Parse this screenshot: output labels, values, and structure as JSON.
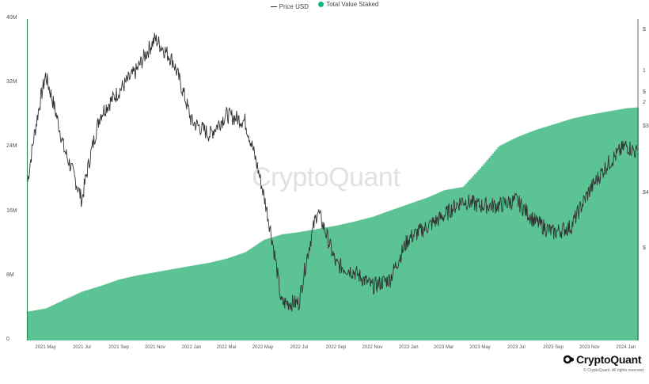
{
  "legend": {
    "price_label": "Price USD",
    "staked_label": "Total Value Staked",
    "staked_color": "#10b97a",
    "price_color": "#333333"
  },
  "watermark": "CryptoQuant",
  "brand": {
    "name": "CryptoQuant",
    "copyright": "© CryptoQuant. All rights reserved."
  },
  "chart_data": {
    "type": "area",
    "title": "",
    "xlabel": "",
    "ylabel": "",
    "x_ticks": [
      "2021 May",
      "2021 Jul",
      "2021 Sep",
      "2021 Nov",
      "2022 Jan",
      "2022 Mar",
      "2022 May",
      "2022 Jul",
      "2022 Sep",
      "2022 Nov",
      "2023 Jan",
      "2023 Mar",
      "2023 May",
      "2023 Jul",
      "2023 Sep",
      "2023 Nov",
      "2024 Jan"
    ],
    "y_left": {
      "ticks": [
        "0",
        "8M",
        "16M",
        "24M",
        "32M",
        "40M"
      ],
      "range": [
        0,
        40000000
      ]
    },
    "y_right": {
      "scale": "log",
      "ticks": [
        "$",
        "1",
        "$",
        "2",
        "$3",
        "$4",
        "$"
      ]
    },
    "grid": false,
    "legend_position": "top-center",
    "x_time": [
      "2021-04-01",
      "2021-05-01",
      "2021-06-01",
      "2021-07-01",
      "2021-08-01",
      "2021-09-01",
      "2021-10-01",
      "2021-11-01",
      "2021-12-01",
      "2022-01-01",
      "2022-02-01",
      "2022-03-01",
      "2022-04-01",
      "2022-05-01",
      "2022-06-01",
      "2022-07-01",
      "2022-08-01",
      "2022-09-01",
      "2022-10-01",
      "2022-11-01",
      "2022-12-01",
      "2023-01-01",
      "2023-02-01",
      "2023-03-01",
      "2023-04-01",
      "2023-05-01",
      "2023-06-01",
      "2023-07-01",
      "2023-08-01",
      "2023-09-01",
      "2023-10-01",
      "2023-11-01",
      "2023-12-01",
      "2024-01-01",
      "2024-01-20"
    ],
    "series": [
      {
        "name": "Total Value Staked",
        "axis": "left",
        "values": [
          3600000,
          4000000,
          5100000,
          6100000,
          6800000,
          7600000,
          8100000,
          8500000,
          8900000,
          9300000,
          9700000,
          10200000,
          11000000,
          12500000,
          13200000,
          13500000,
          13900000,
          14300000,
          14800000,
          15400000,
          16200000,
          17000000,
          17800000,
          18700000,
          19100000,
          21500000,
          24200000,
          25300000,
          26200000,
          26900000,
          27600000,
          28100000,
          28500000,
          28900000,
          29000000
        ]
      },
      {
        "name": "Price USD",
        "axis": "right",
        "values": [
          2100,
          3700,
          2500,
          1900,
          3000,
          3400,
          3800,
          4500,
          4000,
          2900,
          2700,
          3000,
          2900,
          2000,
          1100,
          1100,
          1800,
          1350,
          1300,
          1200,
          1250,
          1550,
          1650,
          1750,
          1900,
          1850,
          1850,
          1900,
          1700,
          1600,
          1650,
          2000,
          2300,
          2550,
          2450
        ]
      }
    ]
  }
}
